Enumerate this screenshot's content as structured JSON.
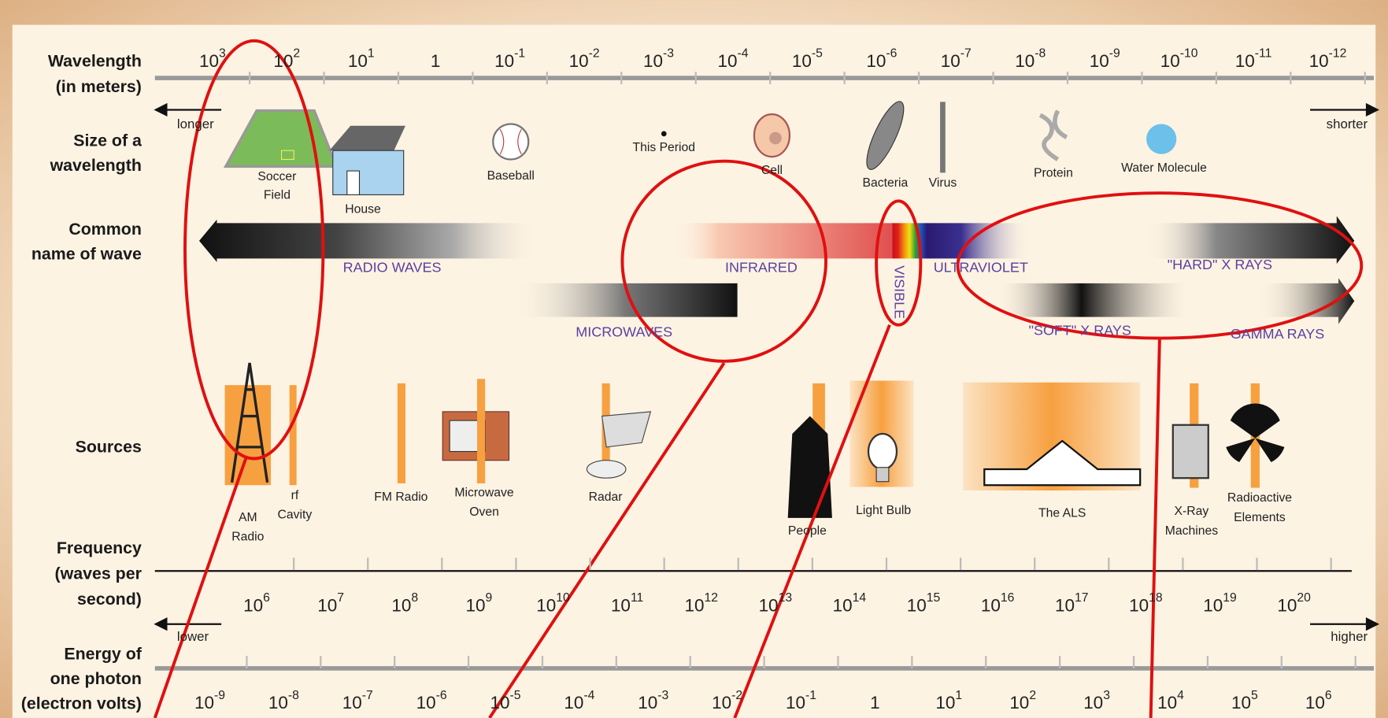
{
  "row_labels": [
    [
      "Wavelength",
      "(in meters)"
    ],
    [
      "Size of a",
      "wavelength"
    ],
    [
      "Common",
      "name of wave"
    ],
    [
      "Sources"
    ],
    [
      "Frequency",
      "(waves per",
      "second)"
    ],
    [
      "Energy of",
      "one photon",
      "(electron volts)"
    ]
  ],
  "wavelength_ticks": [
    {
      "base": "10",
      "exp": "3"
    },
    {
      "base": "10",
      "exp": "2"
    },
    {
      "base": "10",
      "exp": "1"
    },
    {
      "base": "1"
    },
    {
      "base": "10",
      "exp": "-1"
    },
    {
      "base": "10",
      "exp": "-2"
    },
    {
      "base": "10",
      "exp": "-3"
    },
    {
      "base": "10",
      "exp": "-4"
    },
    {
      "base": "10",
      "exp": "-5"
    },
    {
      "base": "10",
      "exp": "-6"
    },
    {
      "base": "10",
      "exp": "-7"
    },
    {
      "base": "10",
      "exp": "-8"
    },
    {
      "base": "10",
      "exp": "-9"
    },
    {
      "base": "10",
      "exp": "-10"
    },
    {
      "base": "10",
      "exp": "-11"
    },
    {
      "base": "10",
      "exp": "-12"
    }
  ],
  "wavelength_direction": [
    "longer",
    "shorter"
  ],
  "size_objects": [
    [
      "Soccer",
      "Field"
    ],
    [
      "House"
    ],
    [
      "Baseball"
    ],
    [
      "This Period"
    ],
    [
      "Cell"
    ],
    [
      "Bacteria"
    ],
    [
      "Virus"
    ],
    [
      "Protein"
    ],
    [
      "Water Molecule"
    ]
  ],
  "wave_names": [
    "RADIO WAVES",
    "INFRARED",
    "VISIBLE",
    "ULTRAVIOLET",
    "\"HARD\" X RAYS",
    "MICROWAVES",
    "\"SOFT\" X RAYS",
    "GAMMA RAYS"
  ],
  "sources": [
    [
      "AM",
      "Radio"
    ],
    [
      "rf",
      "Cavity"
    ],
    [
      "FM Radio"
    ],
    [
      "Microwave",
      "Oven"
    ],
    [
      "Radar"
    ],
    [
      "People"
    ],
    [
      "Light Bulb"
    ],
    [
      "The ALS"
    ],
    [
      "X-Ray",
      "Machines"
    ],
    [
      "Radioactive",
      "Elements"
    ]
  ],
  "frequency_ticks": [
    {
      "base": "10",
      "exp": "6"
    },
    {
      "base": "10",
      "exp": "7"
    },
    {
      "base": "10",
      "exp": "8"
    },
    {
      "base": "10",
      "exp": "9"
    },
    {
      "base": "10",
      "exp": "10"
    },
    {
      "base": "10",
      "exp": "11"
    },
    {
      "base": "10",
      "exp": "12"
    },
    {
      "base": "10",
      "exp": "13"
    },
    {
      "base": "10",
      "exp": "14"
    },
    {
      "base": "10",
      "exp": "15"
    },
    {
      "base": "10",
      "exp": "16"
    },
    {
      "base": "10",
      "exp": "17"
    },
    {
      "base": "10",
      "exp": "18"
    },
    {
      "base": "10",
      "exp": "19"
    },
    {
      "base": "10",
      "exp": "20"
    }
  ],
  "energy_direction": [
    "lower",
    "higher"
  ],
  "energy_ticks": [
    {
      "base": "10",
      "exp": "-9"
    },
    {
      "base": "10",
      "exp": "-8"
    },
    {
      "base": "10",
      "exp": "-7"
    },
    {
      "base": "10",
      "exp": "-6"
    },
    {
      "base": "10",
      "exp": "-5"
    },
    {
      "base": "10",
      "exp": "-4"
    },
    {
      "base": "10",
      "exp": "-3"
    },
    {
      "base": "10",
      "exp": "-2"
    },
    {
      "base": "10",
      "exp": "-1"
    },
    {
      "base": "1"
    },
    {
      "base": "10",
      "exp": "1"
    },
    {
      "base": "10",
      "exp": "2"
    },
    {
      "base": "10",
      "exp": "3"
    },
    {
      "base": "10",
      "exp": "4"
    },
    {
      "base": "10",
      "exp": "5"
    },
    {
      "base": "10",
      "exp": "6"
    }
  ]
}
